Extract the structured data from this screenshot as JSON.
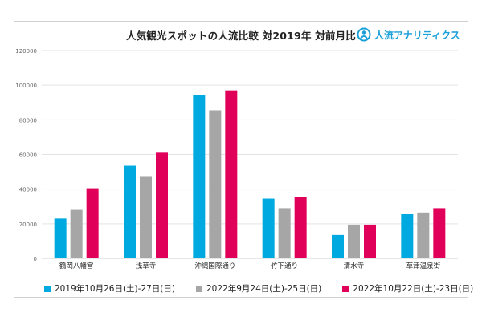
{
  "brand": {
    "name": "人流アナリティクス",
    "color": "#1aa0d8"
  },
  "chart_data": {
    "type": "bar",
    "title": "人気観光スポットの人流比較 対2019年 対前月比",
    "xlabel": "",
    "ylabel": "",
    "ylim": [
      0,
      120000
    ],
    "yticks": [
      0,
      20000,
      40000,
      60000,
      80000,
      100000,
      120000
    ],
    "ytick_labels": [
      "0",
      "20000",
      "40000",
      "60000",
      "80000",
      "100000",
      "120000"
    ],
    "grid": true,
    "legend_position": "bottom",
    "categories": [
      "鶴岡八幡宮",
      "浅草寺",
      "沖縄国際通り",
      "竹下通り",
      "清水寺",
      "草津温泉街"
    ],
    "series": [
      {
        "name": "2019年10月26日(土)-27日(日)",
        "color": "#00a9e0",
        "values": [
          23000,
          53500,
          94500,
          34500,
          13500,
          25500
        ]
      },
      {
        "name": "2022年9月24日(土)-25日(日)",
        "color": "#a6a6a6",
        "values": [
          28000,
          47500,
          85500,
          29000,
          19500,
          26500
        ]
      },
      {
        "name": "2022年10月22日(土)-23日(日)",
        "color": "#e0005a",
        "values": [
          40500,
          61000,
          97000,
          35500,
          19500,
          29000
        ]
      }
    ]
  }
}
